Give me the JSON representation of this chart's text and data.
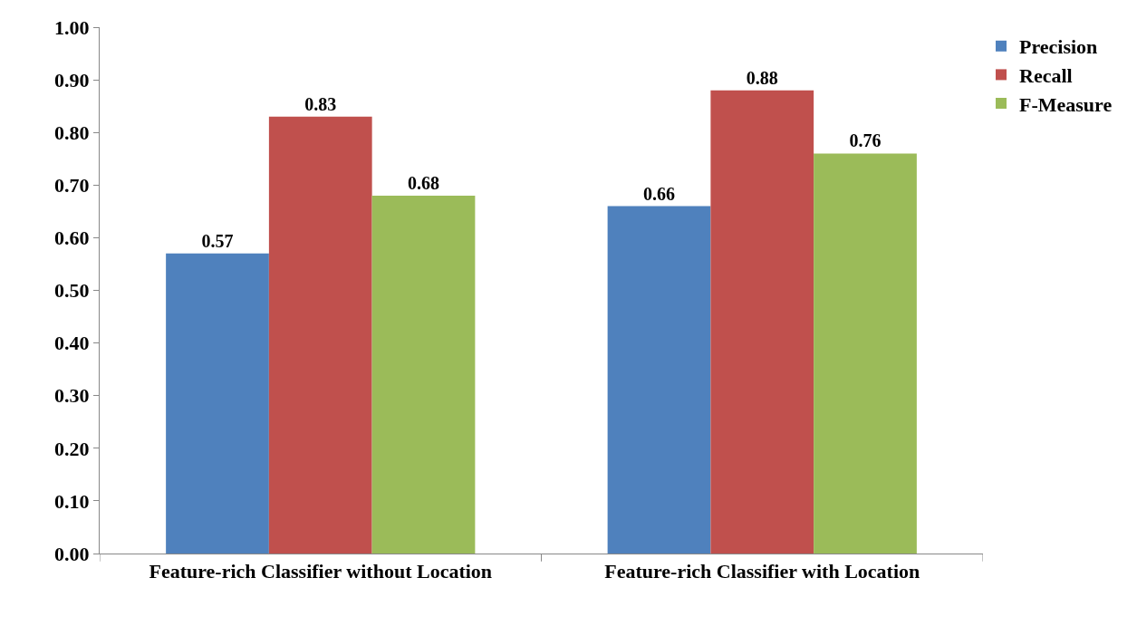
{
  "chart_data": {
    "type": "bar",
    "categories": [
      "Feature-rich Classifier without Location",
      "Feature-rich Classifier with Location"
    ],
    "series": [
      {
        "name": "Precision",
        "color": "#4f81bd",
        "values": [
          0.57,
          0.66
        ]
      },
      {
        "name": "Recall",
        "color": "#c0504d",
        "values": [
          0.83,
          0.88
        ]
      },
      {
        "name": "F-Measure",
        "color": "#9bbb59",
        "values": [
          0.68,
          0.76
        ]
      }
    ],
    "ylim": [
      0,
      1
    ],
    "yticks": [
      {
        "value": 0,
        "label": "0.00"
      },
      {
        "value": 0.1,
        "label": "0.10"
      },
      {
        "value": 0.2,
        "label": "0.20"
      },
      {
        "value": 0.3,
        "label": "0.30"
      },
      {
        "value": 0.4,
        "label": "0.40"
      },
      {
        "value": 0.5,
        "label": "0.50"
      },
      {
        "value": 0.6,
        "label": "0.60"
      },
      {
        "value": 0.7,
        "label": "0.70"
      },
      {
        "value": 0.8,
        "label": "0.80"
      },
      {
        "value": 0.9,
        "label": "0.90"
      },
      {
        "value": 1,
        "label": "1.00"
      }
    ],
    "data_labels": true,
    "legend": "top right"
  }
}
